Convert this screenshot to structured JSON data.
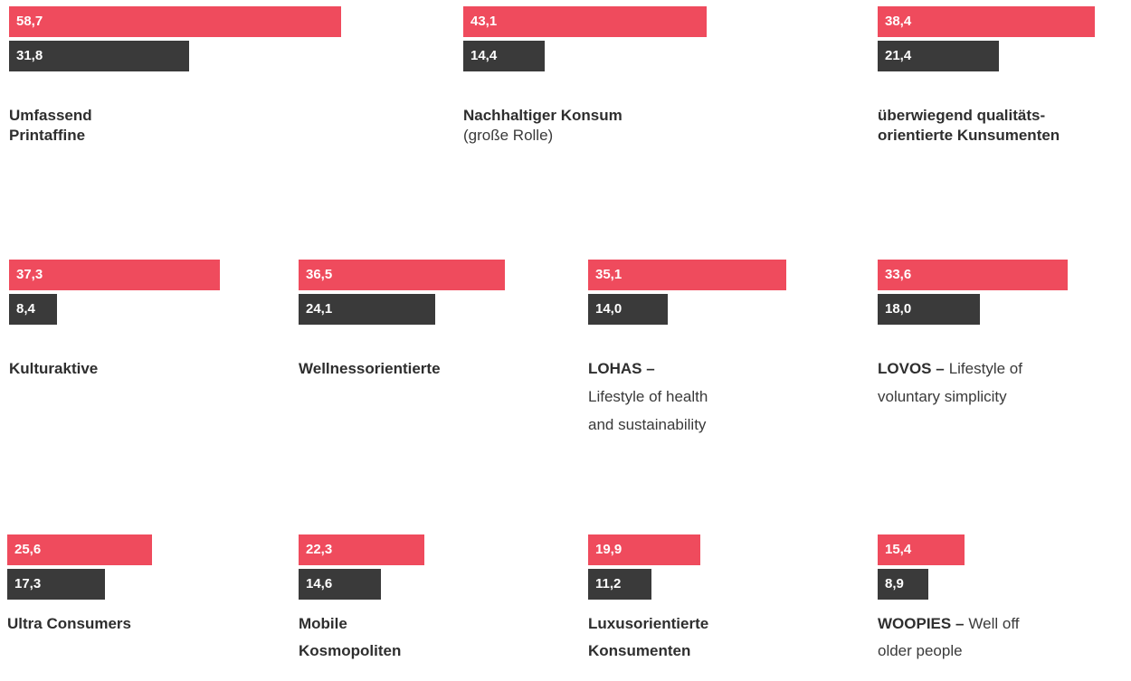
{
  "chart_data": [
    {
      "type": "bar",
      "values": [
        58.7,
        31.8
      ],
      "value_labels": [
        "58,7",
        "31,8"
      ],
      "colors": [
        "#ef4b5d",
        "#3a3a3a"
      ],
      "label": [
        {
          "bold": "Umfassend"
        },
        {
          "bold": "Printaffine"
        }
      ]
    },
    {
      "type": "bar",
      "values": [
        43.1,
        14.4
      ],
      "value_labels": [
        "43,1",
        "14,4"
      ],
      "colors": [
        "#ef4b5d",
        "#3a3a3a"
      ],
      "label": [
        {
          "bold": "Nachhaltiger Konsum"
        },
        {
          "text": "(große Rolle)"
        }
      ]
    },
    {
      "type": "bar",
      "values": [
        38.4,
        21.4
      ],
      "value_labels": [
        "38,4",
        "21,4"
      ],
      "colors": [
        "#ef4b5d",
        "#3a3a3a"
      ],
      "label": [
        {
          "bold": "überwiegend qualitäts-"
        },
        {
          "bold": "orientierte Kunsumenten"
        }
      ]
    },
    {
      "type": "bar",
      "values": [
        37.3,
        8.4
      ],
      "value_labels": [
        "37,3",
        "8,4"
      ],
      "colors": [
        "#ef4b5d",
        "#3a3a3a"
      ],
      "label": [
        {
          "bold": "Kulturaktive"
        }
      ]
    },
    {
      "type": "bar",
      "values": [
        36.5,
        24.1
      ],
      "value_labels": [
        "36,5",
        "24,1"
      ],
      "colors": [
        "#ef4b5d",
        "#3a3a3a"
      ],
      "label": [
        {
          "bold": "Wellnessorientierte"
        }
      ]
    },
    {
      "type": "bar",
      "values": [
        35.1,
        14.0
      ],
      "value_labels": [
        "35,1",
        "14,0"
      ],
      "colors": [
        "#ef4b5d",
        "#3a3a3a"
      ],
      "label": [
        {
          "bold": "LOHAS –"
        },
        {
          "text": "Lifestyle of health"
        },
        {
          "text": "and sustainability"
        }
      ]
    },
    {
      "type": "bar",
      "values": [
        33.6,
        18.0
      ],
      "value_labels": [
        "33,6",
        "18,0"
      ],
      "colors": [
        "#ef4b5d",
        "#3a3a3a"
      ],
      "label": [
        {
          "bold": "LOVOS –",
          "text": "Lifestyle of"
        },
        {
          "text": "voluntary simplicity"
        }
      ]
    },
    {
      "type": "bar",
      "values": [
        25.6,
        17.3
      ],
      "value_labels": [
        "25,6",
        "17,3"
      ],
      "colors": [
        "#ef4b5d",
        "#3a3a3a"
      ],
      "label": [
        {
          "bold": "Ultra Consumers"
        }
      ]
    },
    {
      "type": "bar",
      "values": [
        22.3,
        14.6
      ],
      "value_labels": [
        "22,3",
        "14,6"
      ],
      "colors": [
        "#ef4b5d",
        "#3a3a3a"
      ],
      "label": [
        {
          "bold": "Mobile"
        },
        {
          "bold": "Kosmopoliten"
        }
      ]
    },
    {
      "type": "bar",
      "values": [
        19.9,
        11.2
      ],
      "value_labels": [
        "19,9",
        "11,2"
      ],
      "colors": [
        "#ef4b5d",
        "#3a3a3a"
      ],
      "label": [
        {
          "bold": "Luxusorientierte"
        },
        {
          "bold": "Konsumenten"
        }
      ]
    },
    {
      "type": "bar",
      "values": [
        15.4,
        8.9
      ],
      "value_labels": [
        "15,4",
        "8,9"
      ],
      "colors": [
        "#ef4b5d",
        "#3a3a3a"
      ],
      "label": [
        {
          "bold": "WOOPIES –",
          "text": "Well off"
        },
        {
          "text": "older people"
        }
      ]
    }
  ]
}
